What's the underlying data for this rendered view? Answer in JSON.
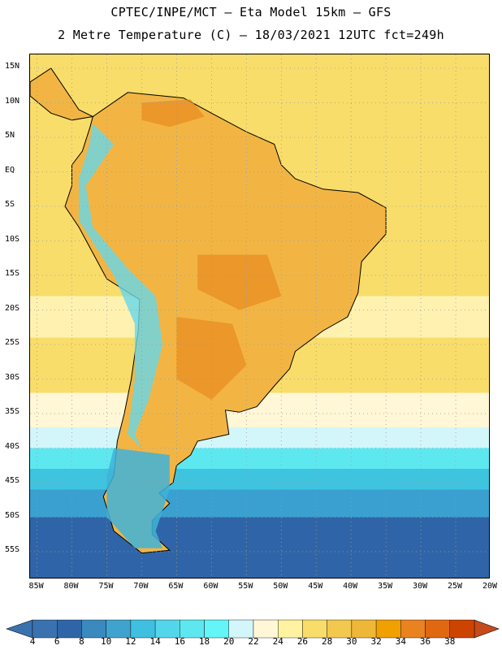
{
  "title": {
    "line1": "CPTEC/INPE/MCT –  Eta Model 15km – GFS",
    "line2": "2 Metre Temperature (C) – 18/03/2021 12UTC fct=249h"
  },
  "map": {
    "region": "South America",
    "lon_range": [
      -86,
      -20
    ],
    "lat_range": [
      -59,
      17
    ],
    "lat_ticks": [
      {
        "value": 15,
        "label": "15N"
      },
      {
        "value": 10,
        "label": "10N"
      },
      {
        "value": 5,
        "label": "5N"
      },
      {
        "value": 0,
        "label": "EQ"
      },
      {
        "value": -5,
        "label": "5S"
      },
      {
        "value": -10,
        "label": "10S"
      },
      {
        "value": -15,
        "label": "15S"
      },
      {
        "value": -20,
        "label": "20S"
      },
      {
        "value": -25,
        "label": "25S"
      },
      {
        "value": -30,
        "label": "30S"
      },
      {
        "value": -35,
        "label": "35S"
      },
      {
        "value": -40,
        "label": "40S"
      },
      {
        "value": -45,
        "label": "45S"
      },
      {
        "value": -50,
        "label": "50S"
      },
      {
        "value": -55,
        "label": "55S"
      }
    ],
    "lon_ticks": [
      {
        "value": -85,
        "label": "85W"
      },
      {
        "value": -80,
        "label": "80W"
      },
      {
        "value": -75,
        "label": "75W"
      },
      {
        "value": -70,
        "label": "70W"
      },
      {
        "value": -65,
        "label": "65W"
      },
      {
        "value": -60,
        "label": "60W"
      },
      {
        "value": -55,
        "label": "55W"
      },
      {
        "value": -50,
        "label": "50W"
      },
      {
        "value": -45,
        "label": "45W"
      },
      {
        "value": -40,
        "label": "40W"
      },
      {
        "value": -35,
        "label": "35W"
      },
      {
        "value": -30,
        "label": "30W"
      },
      {
        "value": -25,
        "label": "25W"
      },
      {
        "value": -20,
        "label": "20W"
      }
    ],
    "ocean_bands": [
      {
        "lat_top": 17,
        "lat_bottom": -18,
        "color": "#f8dd6a"
      },
      {
        "lat_top": -18,
        "lat_bottom": -24,
        "color": "#fff2b0"
      },
      {
        "lat_top": -24,
        "lat_bottom": -32,
        "color": "#f8dd6a"
      },
      {
        "lat_top": -32,
        "lat_bottom": -37,
        "color": "#fff7d6"
      },
      {
        "lat_top": -37,
        "lat_bottom": -40,
        "color": "#d3f6fb"
      },
      {
        "lat_top": -40,
        "lat_bottom": -43,
        "color": "#5de8f0"
      },
      {
        "lat_top": -43,
        "lat_bottom": -46,
        "color": "#3fc4df"
      },
      {
        "lat_top": -46,
        "lat_bottom": -50,
        "color": "#3aa0cf"
      },
      {
        "lat_top": -50,
        "lat_bottom": -59,
        "color": "#2f65a8"
      }
    ],
    "land_color": "#f2b544",
    "land_hot_color": "#e88a20",
    "andes_cold_color": "#66d7ea",
    "patagonia_color": "#40b3d8",
    "grid_color": "#9a9a9a",
    "border_color": "#000000"
  },
  "colorbar": {
    "labels": [
      "4",
      "6",
      "8",
      "10",
      "12",
      "14",
      "16",
      "18",
      "20",
      "22",
      "24",
      "26",
      "28",
      "30",
      "32",
      "34",
      "36",
      "38"
    ],
    "colors": [
      "#3a72b0",
      "#2f65a8",
      "#3a8ac0",
      "#40a3cf",
      "#3fc0e0",
      "#54d6ea",
      "#5de8f0",
      "#63f5f8",
      "#d3f6fb",
      "#fff7d6",
      "#fff2a0",
      "#f8dd6a",
      "#f3c84e",
      "#eeb737",
      "#f0a000",
      "#e88320",
      "#e06810",
      "#cc4400"
    ],
    "left_arrow_color": "#3a72b0",
    "right_arrow_color": "#c54a1c"
  }
}
